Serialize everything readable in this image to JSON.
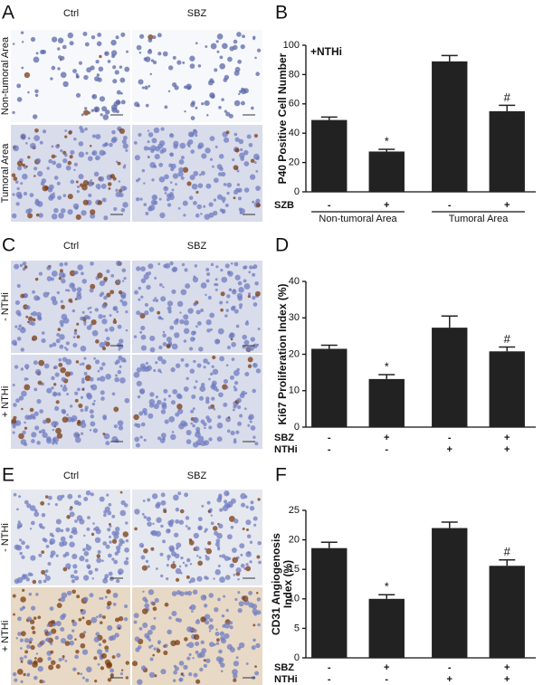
{
  "image_panels": [
    {
      "letter": "A",
      "columns": [
        "Ctrl",
        "SBZ"
      ],
      "rows": [
        "Non-tumoral Area",
        "Tumoral Area"
      ]
    },
    {
      "letter": "C",
      "columns": [
        "Ctrl",
        "SBZ"
      ],
      "rows": [
        "- NTHi",
        "+ NTHi"
      ]
    },
    {
      "letter": "E",
      "columns": [
        "Ctrl",
        "SBZ"
      ],
      "rows": [
        "- NTHi",
        "+ NTHi"
      ]
    }
  ],
  "chart_data": [
    {
      "type": "bar",
      "letter": "B",
      "annotation": "+NTHi",
      "ylabel": [
        "P40 Positive Cell Number"
      ],
      "values": [
        49,
        27.5,
        89,
        55
      ],
      "errors": [
        2,
        1.5,
        4,
        4
      ],
      "bar_markers": [
        null,
        "*",
        null,
        "#"
      ],
      "color": "#222222",
      "ylim": [
        0,
        100
      ],
      "yticks": [
        0,
        20,
        40,
        60,
        80,
        100
      ],
      "conditions": [
        {
          "name": "SZB",
          "values": [
            "-",
            "+",
            "-",
            "+"
          ]
        }
      ],
      "groups": [
        "Non-tumoral Area",
        "Tumoral Area"
      ]
    },
    {
      "type": "bar",
      "letter": "D",
      "ylabel": [
        "Ki67 Proliferation Index (%)"
      ],
      "values": [
        21.5,
        13.2,
        27.3,
        20.8
      ],
      "errors": [
        1,
        1.2,
        3.2,
        1.2
      ],
      "bar_markers": [
        null,
        "*",
        null,
        "#"
      ],
      "color": "#222222",
      "ylim": [
        0,
        40
      ],
      "yticks": [
        0,
        10,
        20,
        30,
        40
      ],
      "conditions": [
        {
          "name": "SBZ",
          "values": [
            "-",
            "+",
            "-",
            "+"
          ]
        },
        {
          "name": "NTHi",
          "values": [
            "-",
            "-",
            "+",
            "+"
          ]
        }
      ]
    },
    {
      "type": "bar",
      "letter": "F",
      "ylabel": [
        "CD31 Angiogenosis",
        "Index (%)"
      ],
      "values": [
        18.6,
        10,
        22,
        15.6
      ],
      "errors": [
        1,
        0.7,
        1,
        1
      ],
      "bar_markers": [
        null,
        "*",
        null,
        "#"
      ],
      "color": "#222222",
      "ylim": [
        0,
        25
      ],
      "yticks": [
        0,
        5,
        10,
        15,
        20,
        25
      ],
      "conditions": [
        {
          "name": "SBZ",
          "values": [
            "-",
            "+",
            "-",
            "+"
          ]
        },
        {
          "name": "NTHi",
          "values": [
            "-",
            "-",
            "+",
            "+"
          ]
        }
      ]
    }
  ]
}
